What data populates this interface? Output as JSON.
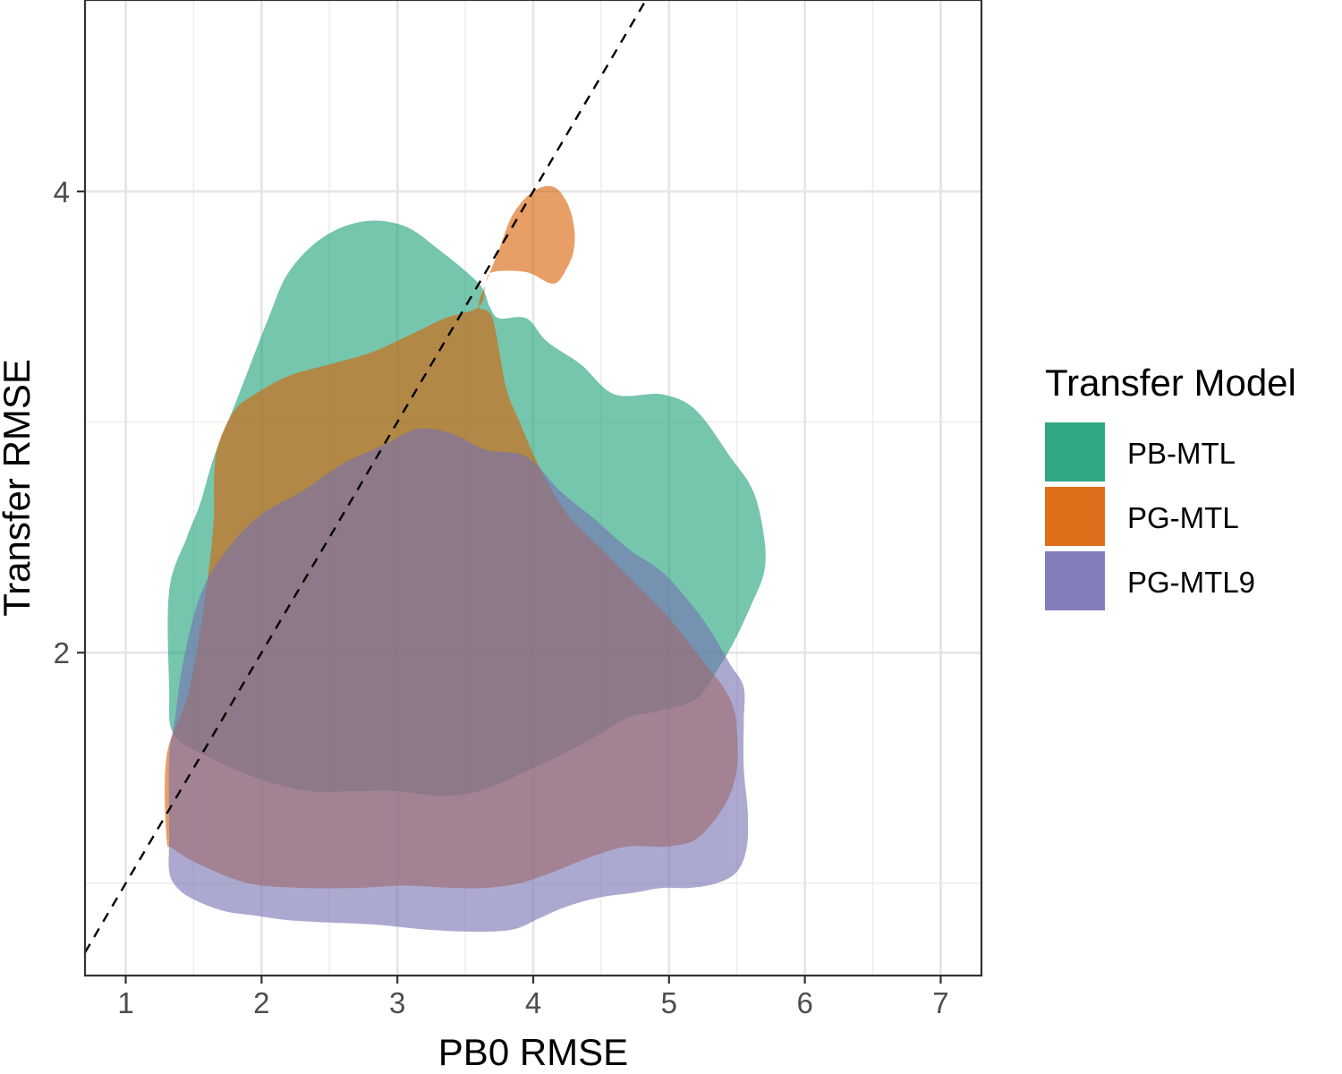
{
  "chart_data": {
    "type": "area",
    "title": "",
    "xlabel": "PB0 RMSE",
    "ylabel": "Transfer RMSE",
    "xlim": [
      0.7,
      7.3
    ],
    "ylim": [
      0.6,
      4.83
    ],
    "x_ticks": [
      1,
      2,
      3,
      4,
      5,
      6,
      7
    ],
    "x_tick_labels": [
      "1",
      "2",
      "3",
      "4",
      "5",
      "6",
      "7"
    ],
    "y_ticks": [
      2,
      4
    ],
    "y_tick_labels": [
      "2",
      "4"
    ],
    "y_minor_gridlines": [
      1,
      3
    ],
    "grid": true,
    "reference_line": {
      "type": "identity",
      "style": "dashed",
      "slope": 1,
      "intercept": 0
    },
    "legend": {
      "title": "Transfer Model",
      "placement": "right"
    },
    "series": [
      {
        "name": "PB-MTL",
        "color": "#1B9E77",
        "opacity": 0.6,
        "polygon": [
          [
            1.32,
            1.85
          ],
          [
            1.32,
            2.27
          ],
          [
            1.45,
            2.5
          ],
          [
            1.55,
            2.65
          ],
          [
            1.65,
            2.85
          ],
          [
            1.82,
            3.1
          ],
          [
            2.05,
            3.45
          ],
          [
            2.2,
            3.65
          ],
          [
            2.45,
            3.8
          ],
          [
            2.75,
            3.87
          ],
          [
            3.05,
            3.85
          ],
          [
            3.3,
            3.75
          ],
          [
            3.6,
            3.6
          ],
          [
            3.68,
            3.5
          ],
          [
            3.75,
            3.45
          ],
          [
            3.95,
            3.45
          ],
          [
            4.1,
            3.35
          ],
          [
            4.35,
            3.25
          ],
          [
            4.6,
            3.12
          ],
          [
            4.95,
            3.12
          ],
          [
            5.2,
            3.05
          ],
          [
            5.45,
            2.85
          ],
          [
            5.62,
            2.7
          ],
          [
            5.7,
            2.5
          ],
          [
            5.7,
            2.35
          ],
          [
            5.6,
            2.2
          ],
          [
            5.48,
            2.05
          ],
          [
            5.35,
            1.92
          ],
          [
            5.2,
            1.8
          ],
          [
            4.95,
            1.75
          ],
          [
            4.7,
            1.72
          ],
          [
            4.5,
            1.65
          ],
          [
            4.25,
            1.57
          ],
          [
            4.0,
            1.5
          ],
          [
            3.6,
            1.4
          ],
          [
            3.3,
            1.38
          ],
          [
            3.0,
            1.4
          ],
          [
            2.7,
            1.4
          ],
          [
            2.35,
            1.4
          ],
          [
            2.0,
            1.45
          ],
          [
            1.6,
            1.55
          ],
          [
            1.35,
            1.65
          ]
        ]
      },
      {
        "name": "PG-MTL",
        "color": "#D95F02",
        "opacity": 0.6,
        "polygon": [
          [
            1.65,
            2.75
          ],
          [
            1.68,
            2.9
          ],
          [
            1.8,
            3.05
          ],
          [
            1.95,
            3.12
          ],
          [
            2.2,
            3.2
          ],
          [
            2.5,
            3.25
          ],
          [
            2.8,
            3.3
          ],
          [
            3.1,
            3.38
          ],
          [
            3.35,
            3.45
          ],
          [
            3.6,
            3.5
          ],
          [
            3.65,
            3.6
          ],
          [
            3.7,
            3.65
          ],
          [
            3.95,
            3.65
          ],
          [
            4.15,
            3.6
          ],
          [
            4.25,
            3.67
          ],
          [
            4.3,
            3.75
          ],
          [
            4.3,
            3.85
          ],
          [
            4.25,
            3.95
          ],
          [
            4.15,
            4.02
          ],
          [
            4.0,
            4.0
          ],
          [
            3.85,
            3.9
          ],
          [
            3.75,
            3.75
          ],
          [
            3.65,
            3.6
          ],
          [
            3.6,
            3.5
          ],
          [
            3.7,
            3.45
          ],
          [
            3.8,
            3.15
          ],
          [
            3.9,
            3.0
          ],
          [
            4.05,
            2.8
          ],
          [
            4.25,
            2.6
          ],
          [
            4.5,
            2.45
          ],
          [
            4.75,
            2.3
          ],
          [
            5.0,
            2.15
          ],
          [
            5.2,
            2.0
          ],
          [
            5.4,
            1.85
          ],
          [
            5.48,
            1.75
          ],
          [
            5.5,
            1.65
          ],
          [
            5.5,
            1.5
          ],
          [
            5.42,
            1.35
          ],
          [
            5.22,
            1.2
          ],
          [
            5.0,
            1.16
          ],
          [
            4.7,
            1.16
          ],
          [
            4.45,
            1.12
          ],
          [
            4.15,
            1.05
          ],
          [
            3.9,
            1.0
          ],
          [
            3.65,
            0.98
          ],
          [
            3.4,
            0.98
          ],
          [
            3.05,
            0.99
          ],
          [
            2.7,
            0.98
          ],
          [
            2.3,
            0.98
          ],
          [
            1.9,
            1.0
          ],
          [
            1.55,
            1.08
          ],
          [
            1.35,
            1.15
          ],
          [
            1.3,
            1.2
          ],
          [
            1.3,
            1.55
          ],
          [
            1.45,
            1.8
          ],
          [
            1.55,
            2.1
          ],
          [
            1.62,
            2.4
          ],
          [
            1.65,
            2.6
          ]
        ]
      },
      {
        "name": "PG-MTL9",
        "color": "#7570B3",
        "opacity": 0.6,
        "polygon": [
          [
            1.32,
            1.55
          ],
          [
            1.36,
            1.7
          ],
          [
            1.42,
            1.95
          ],
          [
            1.55,
            2.25
          ],
          [
            1.75,
            2.45
          ],
          [
            2.0,
            2.6
          ],
          [
            2.3,
            2.7
          ],
          [
            2.6,
            2.82
          ],
          [
            2.9,
            2.9
          ],
          [
            3.15,
            2.97
          ],
          [
            3.4,
            2.95
          ],
          [
            3.65,
            2.88
          ],
          [
            3.95,
            2.85
          ],
          [
            4.2,
            2.7
          ],
          [
            4.45,
            2.58
          ],
          [
            4.7,
            2.45
          ],
          [
            4.95,
            2.35
          ],
          [
            5.15,
            2.22
          ],
          [
            5.3,
            2.1
          ],
          [
            5.45,
            1.95
          ],
          [
            5.55,
            1.85
          ],
          [
            5.55,
            1.7
          ],
          [
            5.55,
            1.5
          ],
          [
            5.58,
            1.3
          ],
          [
            5.57,
            1.15
          ],
          [
            5.5,
            1.05
          ],
          [
            5.35,
            1.0
          ],
          [
            5.15,
            0.98
          ],
          [
            4.95,
            0.98
          ],
          [
            4.75,
            0.96
          ],
          [
            4.5,
            0.94
          ],
          [
            4.25,
            0.9
          ],
          [
            4.05,
            0.85
          ],
          [
            3.85,
            0.8
          ],
          [
            3.55,
            0.79
          ],
          [
            3.2,
            0.8
          ],
          [
            2.85,
            0.82
          ],
          [
            2.5,
            0.83
          ],
          [
            2.2,
            0.84
          ],
          [
            1.95,
            0.86
          ],
          [
            1.72,
            0.88
          ],
          [
            1.5,
            0.93
          ],
          [
            1.38,
            0.98
          ],
          [
            1.32,
            1.05
          ],
          [
            1.32,
            1.2
          ]
        ]
      }
    ]
  }
}
